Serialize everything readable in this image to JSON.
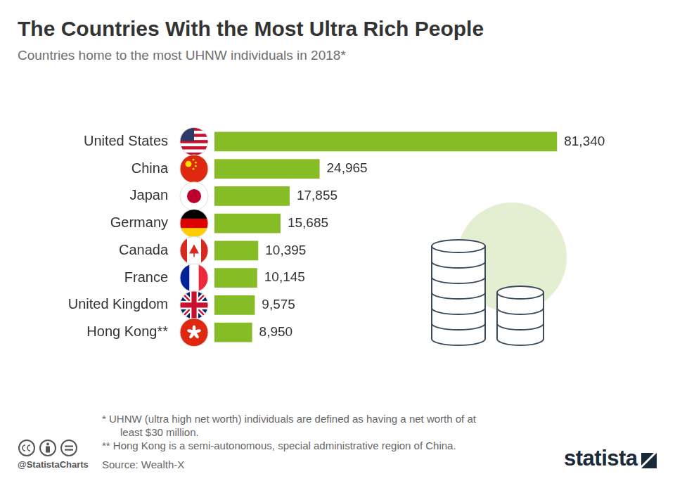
{
  "chart_data": {
    "type": "bar",
    "title": "The Countries With the Most Ultra Rich People",
    "subtitle": "Countries home to the most UHNW individuals in 2018*",
    "orientation": "horizontal",
    "categories": [
      "United States",
      "China",
      "Japan",
      "Germany",
      "Canada",
      "France",
      "United Kingdom",
      "Hong Kong**"
    ],
    "values": [
      81340,
      24965,
      17855,
      15685,
      10395,
      10145,
      9575,
      8950
    ],
    "value_labels": [
      "81,340",
      "24,965",
      "17,855",
      "15,685",
      "10,395",
      "10,145",
      "9,575",
      "8,950"
    ],
    "color": "#86bc25",
    "xlim": [
      0,
      100000
    ],
    "grid": false,
    "data_labels": true,
    "tick_labels": "y"
  },
  "footnotes": [
    "*  UHNW (ultra high net worth) individuals are defined as having a net worth of at least $30 million.",
    "** Hong Kong is a semi-autonomous, special administrative region of China."
  ],
  "handle": "@StatistaCharts",
  "source": "Source: Wealth-X",
  "logo": "statista"
}
